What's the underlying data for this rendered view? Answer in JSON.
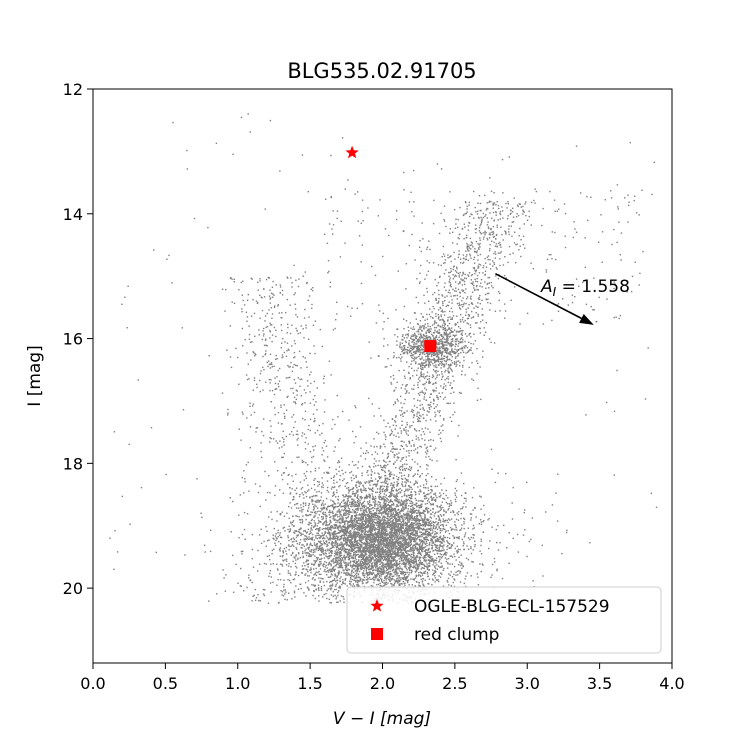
{
  "chart_data": {
    "type": "scatter",
    "title": "BLG535.02.91705",
    "xlabel": "V − I [mag]",
    "ylabel": "I [mag]",
    "xlim": [
      0.0,
      4.0
    ],
    "ylim": [
      21.2,
      12.0
    ],
    "y_inverted": true,
    "x_ticks": [
      "0.0",
      "0.5",
      "1.0",
      "1.5",
      "2.0",
      "2.5",
      "3.0",
      "3.5",
      "4.0"
    ],
    "y_ticks": [
      "12",
      "14",
      "16",
      "18",
      "20"
    ],
    "grid": false,
    "legend_position": "lower-right",
    "stars_color": "#808080",
    "highlight_color": "#ff0000",
    "series": [
      {
        "name": "OGLE-BLG-ECL-157529",
        "marker": "star",
        "x": [
          1.79
        ],
        "y": [
          13.02
        ]
      },
      {
        "name": "red clump",
        "marker": "square",
        "x": [
          2.33
        ],
        "y": [
          16.12
        ]
      }
    ],
    "annotation": {
      "text": "A_I = 1.558",
      "display_main": "A",
      "display_sub": "I",
      "display_rest": " = 1.558",
      "arrow_from": [
        2.78,
        14.96
      ],
      "arrow_to": [
        3.46,
        15.78
      ]
    },
    "field_stars_description": "Dense cloud of grey field-star points centred near V−I≈2.0, I≈19.2 with red-giant branch extending to upper right."
  }
}
